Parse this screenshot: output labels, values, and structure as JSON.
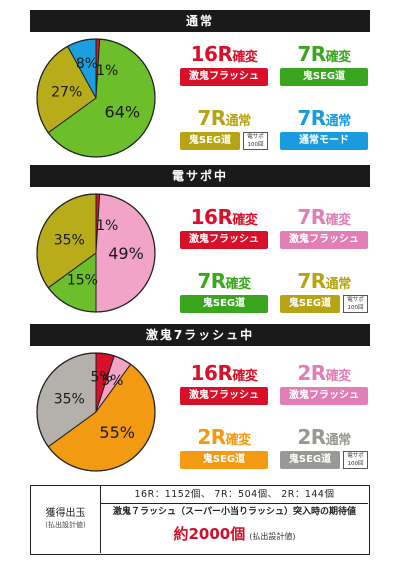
{
  "chart_data": [
    {
      "type": "pie",
      "title": "通常",
      "slices": [
        {
          "label": "1%",
          "value": 1,
          "color": "#d8102a"
        },
        {
          "label": "64%",
          "value": 64,
          "color": "#6cbf2a"
        },
        {
          "label": "27%",
          "value": 27,
          "color": "#b9ac1a"
        },
        {
          "label": "8%",
          "value": 8,
          "color": "#1aa0e0"
        }
      ],
      "badges": [
        {
          "big": "16R",
          "suffix": "確変",
          "big_color": "#d8102a",
          "bar": "激鬼フラッシュ",
          "bar_color": "#d8102a"
        },
        {
          "big": "7R",
          "suffix": "確変",
          "big_color": "#3aa51f",
          "bar": "鬼SEG道",
          "bar_color": "#3aa51f"
        },
        {
          "big": "7R",
          "suffix": "通常",
          "big_color": "#b6a414",
          "bar": "鬼SEG道",
          "bar_color": "#b6a414",
          "note": "電サポ100回"
        },
        {
          "big": "7R",
          "suffix": "通常",
          "big_color": "#1a9be0",
          "bar": "通常モード",
          "bar_color": "#1a9be0"
        }
      ]
    },
    {
      "type": "pie",
      "title": "電サポ中",
      "slices": [
        {
          "label": "1%",
          "value": 1,
          "color": "#d8102a"
        },
        {
          "label": "49%",
          "value": 49,
          "color": "#f2a3c8"
        },
        {
          "label": "15%",
          "value": 15,
          "color": "#6cbf2a"
        },
        {
          "label": "35%",
          "value": 35,
          "color": "#b9ac1a"
        }
      ],
      "badges": [
        {
          "big": "16R",
          "suffix": "確変",
          "big_color": "#d8102a",
          "bar": "激鬼フラッシュ",
          "bar_color": "#d8102a"
        },
        {
          "big": "7R",
          "suffix": "確変",
          "big_color": "#e07fb6",
          "bar": "激鬼フラッシュ",
          "bar_color": "#e07fb6"
        },
        {
          "big": "7R",
          "suffix": "確変",
          "big_color": "#3aa51f",
          "bar": "鬼SEG道",
          "bar_color": "#3aa51f"
        },
        {
          "big": "7R",
          "suffix": "通常",
          "big_color": "#b6a414",
          "bar": "鬼SEG道",
          "bar_color": "#b6a414",
          "note": "電サポ100回"
        }
      ]
    },
    {
      "type": "pie",
      "title": "激鬼7ラッシュ中",
      "slices": [
        {
          "label": "5%",
          "value": 5,
          "color": "#d8102a"
        },
        {
          "label": "5%",
          "value": 5,
          "color": "#f2a3c8"
        },
        {
          "label": "55%",
          "value": 55,
          "color": "#f29a12"
        },
        {
          "label": "35%",
          "value": 35,
          "color": "#b4b0ac"
        }
      ],
      "badges": [
        {
          "big": "16R",
          "suffix": "確変",
          "big_color": "#d8102a",
          "bar": "激鬼フラッシュ",
          "bar_color": "#d8102a"
        },
        {
          "big": "2R",
          "suffix": "確変",
          "big_color": "#e07fb6",
          "bar": "激鬼フラッシュ",
          "bar_color": "#e07fb6"
        },
        {
          "big": "2R",
          "suffix": "確変",
          "big_color": "#f29a12",
          "bar": "鬼SEG道",
          "bar_color": "#f29a12"
        },
        {
          "big": "2R",
          "suffix": "通常",
          "big_color": "#9a9894",
          "bar": "鬼SEG道",
          "bar_color": "#9a9894",
          "note": "電サポ100回"
        }
      ]
    }
  ],
  "footer": {
    "label1": "獲得出玉",
    "label2": "(払出設計値)",
    "row1": "16R：1152個、 7R：504個、 2R：144個",
    "row2": "激鬼７ラッシュ（スーパー小当りラッシュ）突入時の期待値",
    "value": "約2000個",
    "note": "(払出設計値)"
  }
}
